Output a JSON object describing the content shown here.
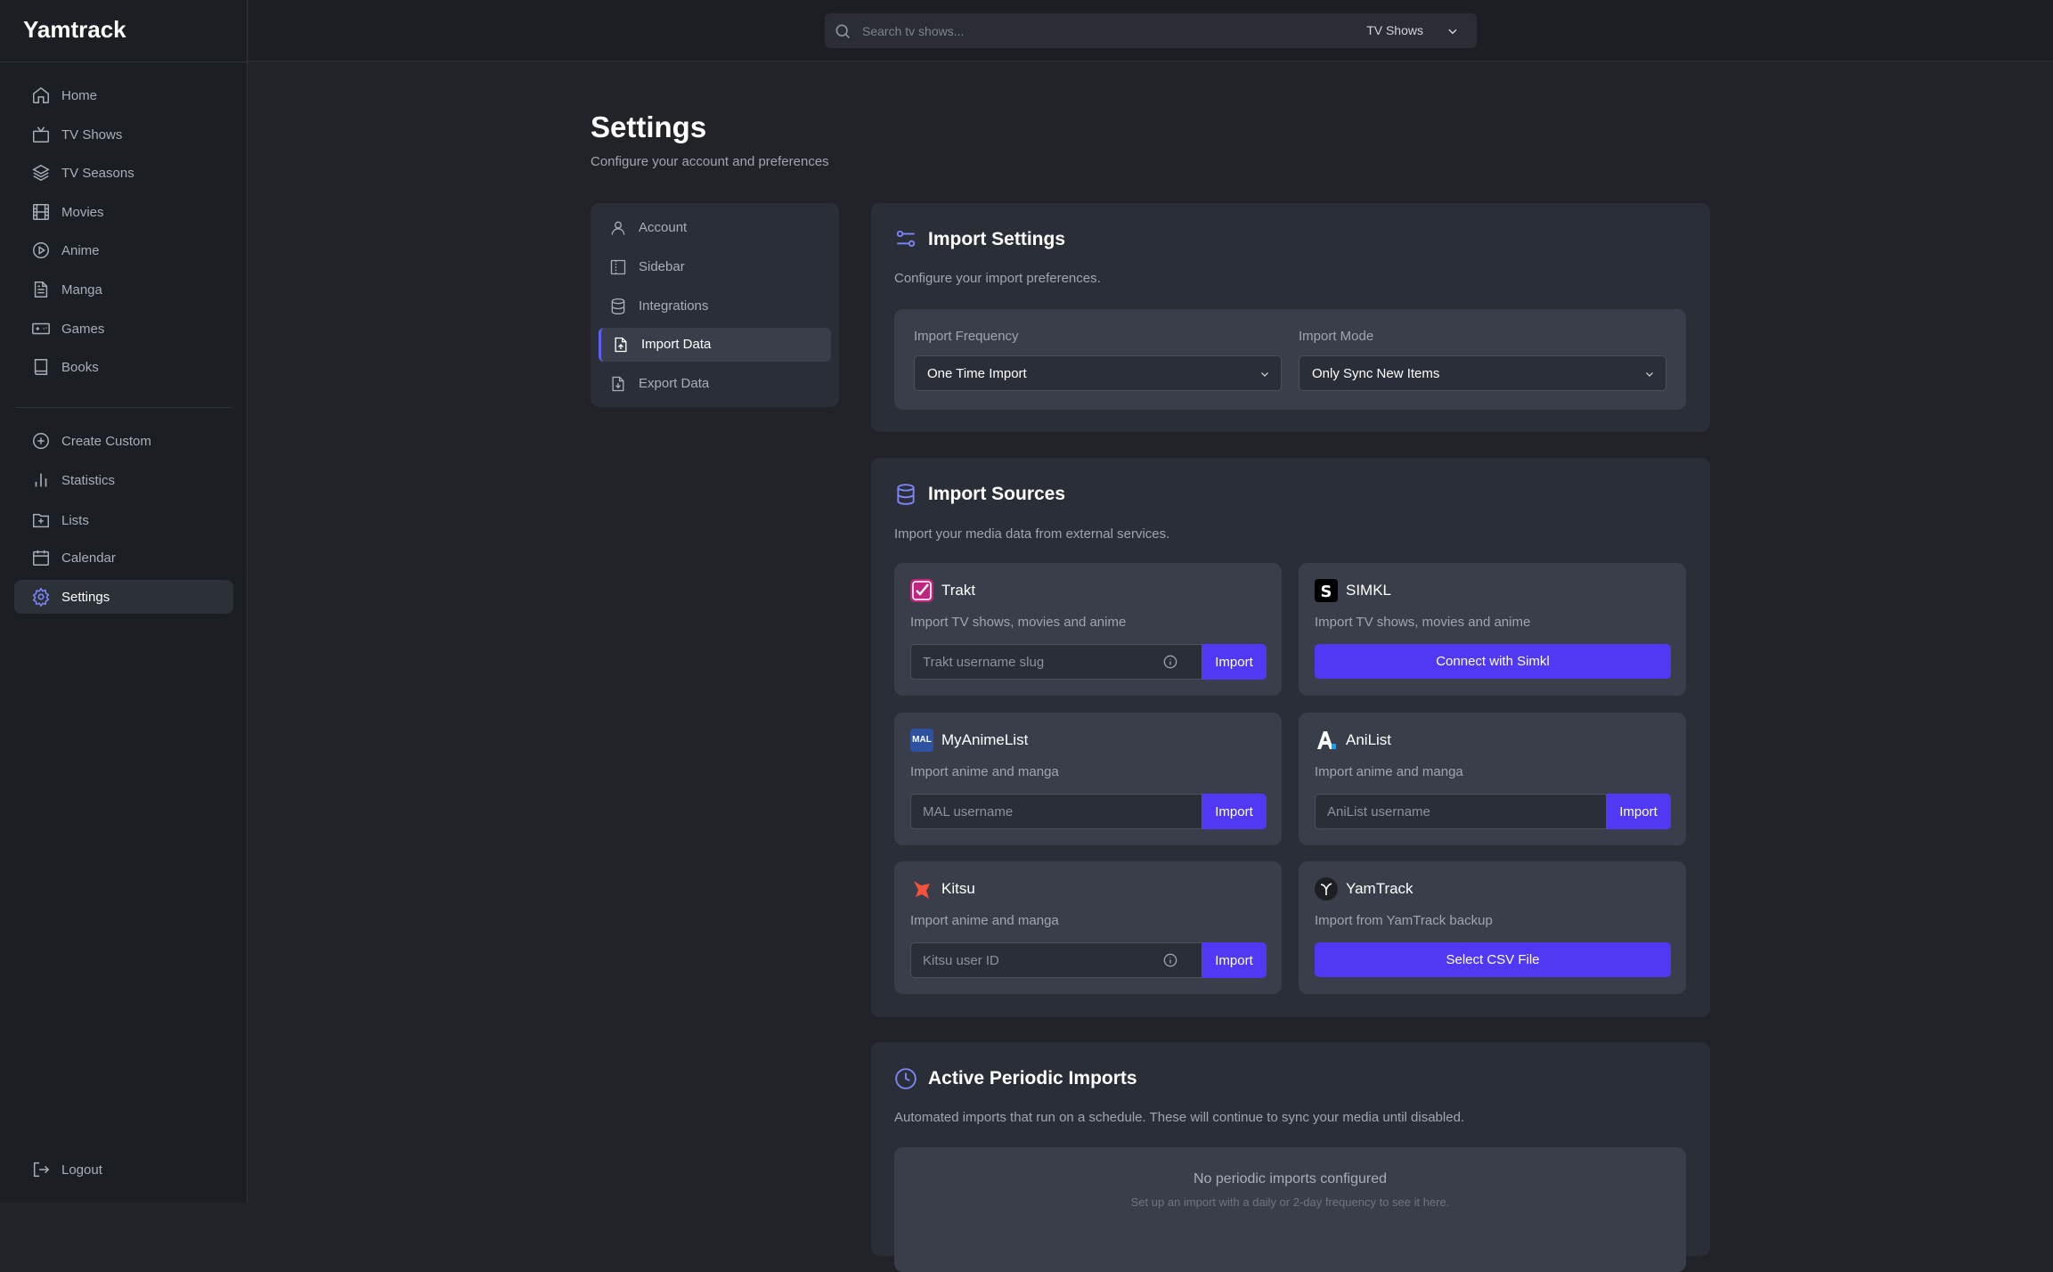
{
  "app": {
    "title": "Yamtrack"
  },
  "sidebar": {
    "items": [
      {
        "label": "Home",
        "icon": "home-icon"
      },
      {
        "label": "TV Shows",
        "icon": "tv-icon"
      },
      {
        "label": "TV Seasons",
        "icon": "layers-icon"
      },
      {
        "label": "Movies",
        "icon": "film-icon"
      },
      {
        "label": "Anime",
        "icon": "play-circle-icon"
      },
      {
        "label": "Manga",
        "icon": "document-icon"
      },
      {
        "label": "Games",
        "icon": "gamepad-icon"
      },
      {
        "label": "Books",
        "icon": "book-icon"
      }
    ],
    "secondary": [
      {
        "label": "Create Custom",
        "icon": "plus-circle-icon"
      },
      {
        "label": "Statistics",
        "icon": "bar-chart-icon"
      },
      {
        "label": "Lists",
        "icon": "folder-plus-icon"
      },
      {
        "label": "Calendar",
        "icon": "calendar-icon"
      },
      {
        "label": "Settings",
        "icon": "gear-icon",
        "active": true
      }
    ],
    "logout": "Logout"
  },
  "search": {
    "placeholder": "Search tv shows...",
    "type": "TV Shows"
  },
  "page": {
    "title": "Settings",
    "subtitle": "Configure your account and preferences"
  },
  "settings_nav": [
    {
      "label": "Account"
    },
    {
      "label": "Sidebar"
    },
    {
      "label": "Integrations"
    },
    {
      "label": "Import Data",
      "active": true
    },
    {
      "label": "Export Data"
    }
  ],
  "import_settings": {
    "title": "Import Settings",
    "description": "Configure your import preferences.",
    "frequency_label": "Import Frequency",
    "frequency_value": "One Time Import",
    "mode_label": "Import Mode",
    "mode_value": "Only Sync New Items"
  },
  "import_sources": {
    "title": "Import Sources",
    "description": "Import your media data from external services.",
    "sources": [
      {
        "name": "Trakt",
        "description": "Import TV shows, movies and anime",
        "placeholder": "Trakt username slug",
        "button": "Import",
        "info": true
      },
      {
        "name": "SIMKL",
        "description": "Import TV shows, movies and anime",
        "button": "Connect with Simkl"
      },
      {
        "name": "MyAnimeList",
        "description": "Import anime and manga",
        "placeholder": "MAL username",
        "button": "Import",
        "logo_text": "MAL"
      },
      {
        "name": "AniList",
        "description": "Import anime and manga",
        "placeholder": "AniList username",
        "button": "Import"
      },
      {
        "name": "Kitsu",
        "description": "Import anime and manga",
        "placeholder": "Kitsu user ID",
        "button": "Import",
        "info": true
      },
      {
        "name": "YamTrack",
        "description": "Import from YamTrack backup",
        "button": "Select CSV File"
      }
    ]
  },
  "periodic": {
    "title": "Active Periodic Imports",
    "description": "Automated imports that run on a schedule. These will continue to sync your media until disabled.",
    "empty_title": "No periodic imports configured",
    "empty_hint": "Set up an import with a daily or 2-day frequency to see it here."
  },
  "colors": {
    "accent": "#5138f5",
    "icon_accent": "#7c83f5",
    "background": "#212329",
    "card": "#2a2e36"
  }
}
